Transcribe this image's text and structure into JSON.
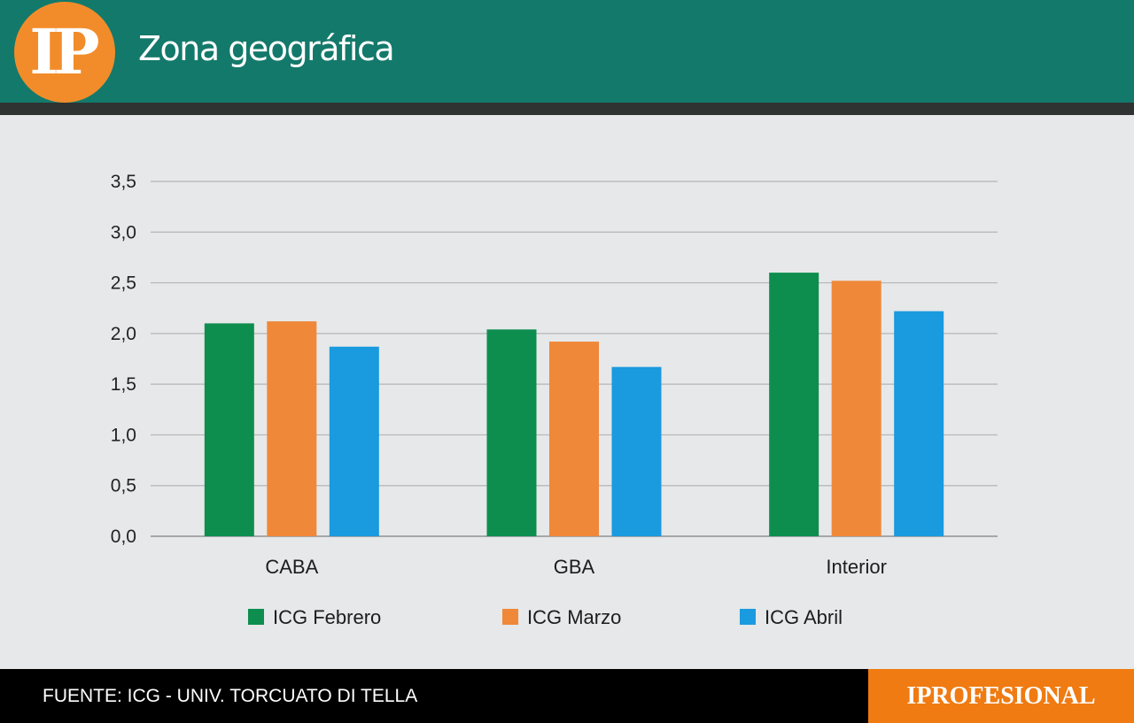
{
  "header": {
    "logo_text": "IP",
    "title": "Zona geográfica"
  },
  "footer": {
    "source": "FUENTE: ICG - UNIV. TORCUATO DI TELLA",
    "brand": "IPROFESIONAL"
  },
  "colors": {
    "header_bg": "#13796b",
    "logo_bg": "#f28c2a",
    "brand_bg": "#ef7b12",
    "febrero": "#0d8e4f",
    "marzo": "#f0883a",
    "abril": "#1a9adf"
  },
  "chart_data": {
    "type": "bar",
    "title": "Zona geográfica",
    "xlabel": "",
    "ylabel": "",
    "categories": [
      "CABA",
      "GBA",
      "Interior"
    ],
    "series": [
      {
        "name": "ICG Febrero",
        "color": "#0d8e4f",
        "values": [
          2.1,
          2.04,
          2.6
        ]
      },
      {
        "name": "ICG Marzo",
        "color": "#f0883a",
        "values": [
          2.12,
          1.92,
          2.52
        ]
      },
      {
        "name": "ICG Abril",
        "color": "#1a9adf",
        "values": [
          1.87,
          1.67,
          2.22
        ]
      }
    ],
    "yticks": [
      "0,0",
      "0,5",
      "1,0",
      "1,5",
      "2,0",
      "2,5",
      "3,0",
      "3,5"
    ],
    "ylim": [
      0,
      3.5
    ],
    "grid": true,
    "legend_position": "bottom"
  }
}
